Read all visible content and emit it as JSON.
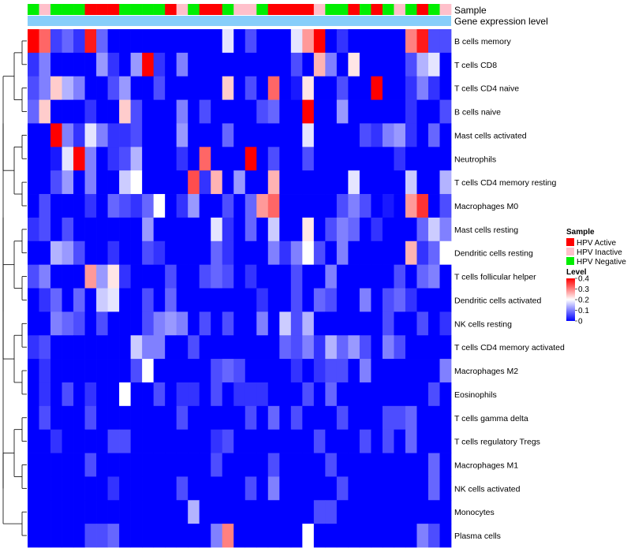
{
  "chart_data": {
    "type": "heatmap",
    "title": "",
    "annotation_rows": [
      "Sample",
      "Gene expression level"
    ],
    "samples": [
      "Negative",
      "Inactive",
      "Negative",
      "Negative",
      "Negative",
      "Active",
      "Active",
      "Active",
      "Negative",
      "Negative",
      "Negative",
      "Negative",
      "Active",
      "Inactive",
      "Negative",
      "Active",
      "Active",
      "Negative",
      "Inactive",
      "Inactive",
      "Negative",
      "Active",
      "Active",
      "Active",
      "Active",
      "Inactive",
      "Negative",
      "Negative",
      "Active",
      "Negative",
      "Active",
      "Negative",
      "Inactive",
      "Negative",
      "Active",
      "Negative",
      "Inactive"
    ],
    "legend": {
      "sample_title": "Sample",
      "sample_entries": [
        {
          "label": "HPV Active",
          "color": "#ff0000"
        },
        {
          "label": "HPV Inactive",
          "color": "#ffc0cb"
        },
        {
          "label": "HPV Negative",
          "color": "#00ee00"
        }
      ],
      "level_title": "Level",
      "level_ticks": [
        "0.4",
        "0.3",
        "0.2",
        "0.1",
        "0"
      ],
      "level_range": [
        0,
        0.4
      ]
    },
    "colorscale": {
      "low": "#0000ff",
      "mid": "#ffffff",
      "high": "#ff0000"
    },
    "gene_expression_color": "#87cefa",
    "rows": [
      "B cells memory",
      "T cells CD8",
      "T cells CD4 naive",
      "B cells naive",
      "Mast cells activated",
      "Neutrophils",
      "T cells CD4 memory resting",
      "Macrophages M0",
      "Mast cells resting",
      "Dendritic cells resting",
      "T cells follicular helper",
      "Dendritic cells activated",
      "NK cells resting",
      "T cells CD4 memory activated",
      "Macrophages M2",
      "Eosinophils",
      "T cells gamma delta",
      "T cells regulatory  Tregs",
      "Macrophages M1",
      "NK cells activated",
      "Monocytes",
      "Plasma cells"
    ],
    "values": [
      [
        0.4,
        0.32,
        0.05,
        0.08,
        0.04,
        0.38,
        0.08,
        0.0,
        0.0,
        0.0,
        0.0,
        0.0,
        0.0,
        0.0,
        0.0,
        0.0,
        0.0,
        0.18,
        0.0,
        0.06,
        0.0,
        0.0,
        0.0,
        0.18,
        0.28,
        0.4,
        0.0,
        0.04,
        0.0,
        0.0,
        0.0,
        0.0,
        0.0,
        0.3,
        0.38,
        0.06,
        0.06
      ],
      [
        0.04,
        0.1,
        0.0,
        0.0,
        0.0,
        0.0,
        0.12,
        0.04,
        0.0,
        0.12,
        0.4,
        0.04,
        0.0,
        0.1,
        0.0,
        0.0,
        0.0,
        0.0,
        0.0,
        0.0,
        0.0,
        0.0,
        0.0,
        0.06,
        0.0,
        0.26,
        0.1,
        0.0,
        0.22,
        0.0,
        0.0,
        0.0,
        0.0,
        0.06,
        0.14,
        0.18,
        0.0
      ],
      [
        0.06,
        0.1,
        0.24,
        0.14,
        0.1,
        0.0,
        0.0,
        0.06,
        0.12,
        0.0,
        0.0,
        0.06,
        0.0,
        0.0,
        0.0,
        0.0,
        0.0,
        0.24,
        0.0,
        0.06,
        0.0,
        0.32,
        0.0,
        0.02,
        0.22,
        0.0,
        0.0,
        0.06,
        0.0,
        0.0,
        0.4,
        0.0,
        0.0,
        0.04,
        0.1,
        0.04,
        0.0
      ],
      [
        0.08,
        0.24,
        0.0,
        0.0,
        0.0,
        0.04,
        0.0,
        0.0,
        0.24,
        0.06,
        0.0,
        0.0,
        0.0,
        0.1,
        0.0,
        0.06,
        0.0,
        0.0,
        0.0,
        0.0,
        0.06,
        0.08,
        0.0,
        0.0,
        0.4,
        0.0,
        0.0,
        0.12,
        0.0,
        0.0,
        0.0,
        0.0,
        0.0,
        0.04,
        0.0,
        0.0,
        0.06
      ],
      [
        0.0,
        0.0,
        0.4,
        0.1,
        0.04,
        0.18,
        0.1,
        0.04,
        0.04,
        0.06,
        0.0,
        0.0,
        0.0,
        0.12,
        0.0,
        0.0,
        0.0,
        0.08,
        0.0,
        0.0,
        0.0,
        0.0,
        0.0,
        0.0,
        0.18,
        0.0,
        0.0,
        0.0,
        0.0,
        0.06,
        0.04,
        0.1,
        0.12,
        0.04,
        0.0,
        0.08,
        0.0
      ],
      [
        0.0,
        0.0,
        0.02,
        0.18,
        0.4,
        0.1,
        0.0,
        0.04,
        0.06,
        0.14,
        0.0,
        0.0,
        0.0,
        0.04,
        0.0,
        0.32,
        0.0,
        0.0,
        0.0,
        0.4,
        0.0,
        0.06,
        0.0,
        0.0,
        0.06,
        0.0,
        0.0,
        0.0,
        0.0,
        0.0,
        0.0,
        0.0,
        0.04,
        0.0,
        0.0,
        0.0,
        0.0
      ],
      [
        0.0,
        0.0,
        0.06,
        0.12,
        0.0,
        0.1,
        0.0,
        0.0,
        0.16,
        0.2,
        0.0,
        0.0,
        0.0,
        0.0,
        0.34,
        0.04,
        0.26,
        0.0,
        0.12,
        0.0,
        0.0,
        0.26,
        0.0,
        0.0,
        0.0,
        0.0,
        0.0,
        0.0,
        0.18,
        0.0,
        0.0,
        0.0,
        0.0,
        0.16,
        0.0,
        0.0,
        0.14
      ],
      [
        0.0,
        0.06,
        0.0,
        0.0,
        0.0,
        0.04,
        0.0,
        0.08,
        0.06,
        0.04,
        0.08,
        0.2,
        0.0,
        0.04,
        0.12,
        0.0,
        0.0,
        0.06,
        0.0,
        0.08,
        0.28,
        0.32,
        0.0,
        0.0,
        0.0,
        0.0,
        0.0,
        0.06,
        0.1,
        0.06,
        0.0,
        0.02,
        0.0,
        0.28,
        0.36,
        0.0,
        0.06
      ],
      [
        0.04,
        0.06,
        0.0,
        0.06,
        0.0,
        0.0,
        0.0,
        0.0,
        0.0,
        0.0,
        0.12,
        0.0,
        0.0,
        0.0,
        0.0,
        0.0,
        0.18,
        0.04,
        0.0,
        0.08,
        0.0,
        0.16,
        0.0,
        0.0,
        0.22,
        0.0,
        0.06,
        0.1,
        0.08,
        0.0,
        0.04,
        0.0,
        0.0,
        0.0,
        0.08,
        0.16,
        0.1
      ],
      [
        0.0,
        0.0,
        0.14,
        0.12,
        0.06,
        0.0,
        0.0,
        0.04,
        0.0,
        0.0,
        0.06,
        0.04,
        0.0,
        0.0,
        0.0,
        0.0,
        0.08,
        0.04,
        0.0,
        0.0,
        0.0,
        0.1,
        0.04,
        0.1,
        0.2,
        0.06,
        0.0,
        0.1,
        0.0,
        0.0,
        0.0,
        0.0,
        0.0,
        0.26,
        0.04,
        0.08,
        0.2
      ],
      [
        0.06,
        0.1,
        0.0,
        0.0,
        0.0,
        0.28,
        0.12,
        0.22,
        0.04,
        0.0,
        0.0,
        0.0,
        0.06,
        0.0,
        0.0,
        0.06,
        0.08,
        0.06,
        0.0,
        0.04,
        0.0,
        0.0,
        0.0,
        0.06,
        0.0,
        0.0,
        0.1,
        0.0,
        0.0,
        0.0,
        0.0,
        0.0,
        0.06,
        0.0,
        0.08,
        0.1,
        0.0
      ],
      [
        0.0,
        0.04,
        0.08,
        0.0,
        0.08,
        0.0,
        0.16,
        0.18,
        0.0,
        0.0,
        0.06,
        0.0,
        0.08,
        0.0,
        0.0,
        0.0,
        0.0,
        0.0,
        0.0,
        0.0,
        0.04,
        0.0,
        0.0,
        0.06,
        0.0,
        0.08,
        0.06,
        0.0,
        0.0,
        0.1,
        0.0,
        0.06,
        0.08,
        0.04,
        0.0,
        0.0,
        0.0
      ],
      [
        0.0,
        0.0,
        0.1,
        0.08,
        0.06,
        0.0,
        0.06,
        0.0,
        0.0,
        0.0,
        0.06,
        0.1,
        0.12,
        0.1,
        0.0,
        0.06,
        0.0,
        0.06,
        0.0,
        0.0,
        0.1,
        0.0,
        0.16,
        0.06,
        0.14,
        0.0,
        0.0,
        0.0,
        0.0,
        0.0,
        0.0,
        0.06,
        0.0,
        0.0,
        0.06,
        0.0,
        0.04
      ],
      [
        0.04,
        0.06,
        0.0,
        0.0,
        0.0,
        0.0,
        0.0,
        0.0,
        0.0,
        0.16,
        0.1,
        0.1,
        0.0,
        0.0,
        0.06,
        0.0,
        0.0,
        0.0,
        0.0,
        0.0,
        0.0,
        0.0,
        0.08,
        0.06,
        0.1,
        0.04,
        0.14,
        0.08,
        0.12,
        0.06,
        0.0,
        0.1,
        0.06,
        0.0,
        0.0,
        0.0,
        0.0
      ],
      [
        0.0,
        0.04,
        0.0,
        0.0,
        0.0,
        0.0,
        0.0,
        0.0,
        0.0,
        0.06,
        0.2,
        0.0,
        0.0,
        0.0,
        0.0,
        0.0,
        0.06,
        0.08,
        0.06,
        0.0,
        0.0,
        0.0,
        0.0,
        0.04,
        0.0,
        0.04,
        0.06,
        0.06,
        0.0,
        0.1,
        0.0,
        0.0,
        0.0,
        0.0,
        0.0,
        0.0,
        0.1
      ],
      [
        0.0,
        0.04,
        0.0,
        0.06,
        0.0,
        0.04,
        0.0,
        0.0,
        0.2,
        0.0,
        0.0,
        0.06,
        0.0,
        0.04,
        0.04,
        0.0,
        0.06,
        0.0,
        0.04,
        0.04,
        0.04,
        0.0,
        0.0,
        0.0,
        0.06,
        0.0,
        0.08,
        0.0,
        0.0,
        0.0,
        0.0,
        0.0,
        0.0,
        0.0,
        0.0,
        0.06,
        0.0
      ],
      [
        0.0,
        0.06,
        0.0,
        0.0,
        0.0,
        0.06,
        0.0,
        0.0,
        0.0,
        0.0,
        0.0,
        0.0,
        0.0,
        0.06,
        0.0,
        0.0,
        0.0,
        0.0,
        0.0,
        0.06,
        0.0,
        0.08,
        0.0,
        0.06,
        0.0,
        0.0,
        0.0,
        0.06,
        0.0,
        0.0,
        0.0,
        0.06,
        0.06,
        0.08,
        0.0,
        0.0,
        0.0
      ],
      [
        0.0,
        0.0,
        0.04,
        0.0,
        0.0,
        0.0,
        0.0,
        0.06,
        0.06,
        0.0,
        0.0,
        0.0,
        0.0,
        0.0,
        0.0,
        0.0,
        0.04,
        0.06,
        0.0,
        0.0,
        0.0,
        0.0,
        0.0,
        0.0,
        0.0,
        0.06,
        0.0,
        0.0,
        0.0,
        0.06,
        0.0,
        0.06,
        0.0,
        0.08,
        0.0,
        0.0,
        0.0
      ],
      [
        0.0,
        0.0,
        0.0,
        0.0,
        0.0,
        0.06,
        0.0,
        0.0,
        0.0,
        0.0,
        0.0,
        0.0,
        0.0,
        0.0,
        0.0,
        0.0,
        0.06,
        0.0,
        0.0,
        0.0,
        0.0,
        0.06,
        0.0,
        0.0,
        0.0,
        0.0,
        0.06,
        0.0,
        0.0,
        0.0,
        0.0,
        0.0,
        0.0,
        0.0,
        0.0,
        0.08,
        0.0
      ],
      [
        0.0,
        0.0,
        0.0,
        0.0,
        0.0,
        0.0,
        0.0,
        0.04,
        0.0,
        0.0,
        0.0,
        0.0,
        0.0,
        0.06,
        0.0,
        0.0,
        0.0,
        0.0,
        0.0,
        0.06,
        0.0,
        0.1,
        0.0,
        0.0,
        0.0,
        0.0,
        0.0,
        0.06,
        0.0,
        0.0,
        0.0,
        0.0,
        0.0,
        0.0,
        0.0,
        0.08,
        0.0
      ],
      [
        0.0,
        0.0,
        0.0,
        0.0,
        0.0,
        0.0,
        0.0,
        0.0,
        0.0,
        0.0,
        0.0,
        0.0,
        0.0,
        0.0,
        0.14,
        0.0,
        0.0,
        0.0,
        0.0,
        0.0,
        0.0,
        0.0,
        0.0,
        0.0,
        0.0,
        0.06,
        0.06,
        0.0,
        0.0,
        0.0,
        0.0,
        0.0,
        0.0,
        0.0,
        0.0,
        0.0,
        0.0
      ],
      [
        0.0,
        0.0,
        0.0,
        0.0,
        0.0,
        0.06,
        0.06,
        0.08,
        0.0,
        0.0,
        0.0,
        0.0,
        0.0,
        0.0,
        0.0,
        0.0,
        0.1,
        0.3,
        0.0,
        0.0,
        0.0,
        0.0,
        0.0,
        0.0,
        0.2,
        0.0,
        0.0,
        0.0,
        0.0,
        0.0,
        0.0,
        0.0,
        0.0,
        0.0,
        0.1,
        0.06,
        0.0
      ]
    ]
  }
}
